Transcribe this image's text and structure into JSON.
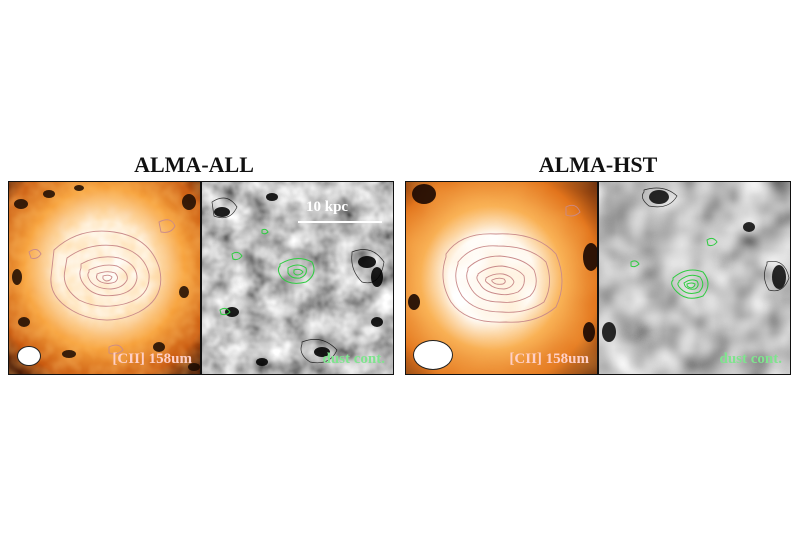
{
  "left": {
    "title": "ALMA-ALL",
    "cii_label": "[CII] 158um",
    "dust_label": "dust cont.",
    "scale_label": "10 kpc"
  },
  "right": {
    "title": "ALMA-HST",
    "cii_label": "[CII] 158um",
    "dust_label": "dust cont."
  },
  "colors": {
    "cii_bg": "#f08a24",
    "cii_contour": "#c98a8a",
    "dust_contour": "#2ecc40"
  }
}
